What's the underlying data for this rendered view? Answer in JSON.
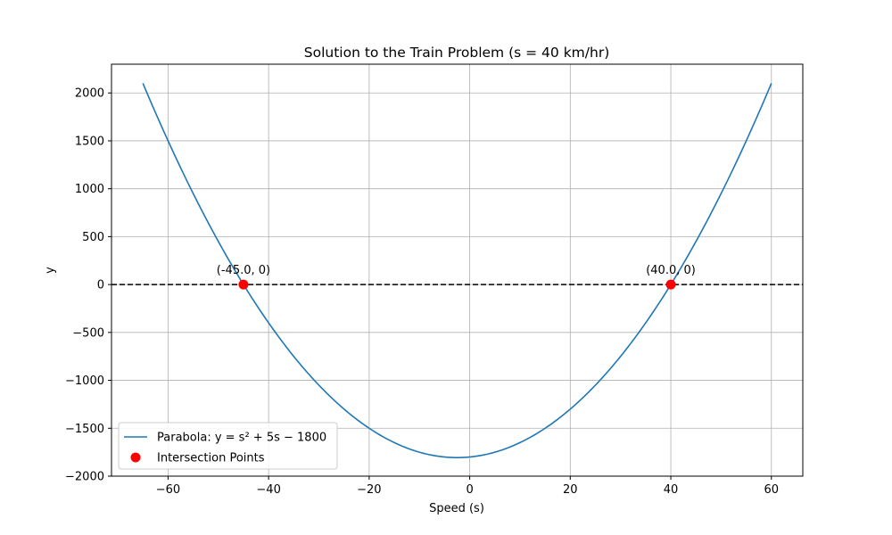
{
  "chart_data": {
    "type": "line",
    "title": "Solution to the Train Problem (s = 40 km/hr)",
    "xlabel": "Speed (s)",
    "ylabel": "y",
    "xlim": [
      -71.25,
      66.25
    ],
    "ylim": [
      -2000,
      2300
    ],
    "grid": true,
    "legend_position": "lower-left",
    "x_ticks": [
      -60,
      -40,
      -20,
      0,
      20,
      40,
      60
    ],
    "x_tick_labels": [
      "−60",
      "−40",
      "−20",
      "0",
      "20",
      "40",
      "60"
    ],
    "y_ticks": [
      -2000,
      -1500,
      -1000,
      -500,
      0,
      500,
      1000,
      1500,
      2000
    ],
    "y_tick_labels": [
      "−2000",
      "−1500",
      "−1000",
      "−500",
      "0",
      "500",
      "1000",
      "1500",
      "2000"
    ],
    "series": [
      {
        "name": "Parabola: y = s² + 5s − 1800",
        "type": "line",
        "color": "#1f77b4",
        "x": [
          -65,
          -60,
          -55,
          -50,
          -45,
          -40,
          -35,
          -30,
          -25,
          -20,
          -15,
          -10,
          -5,
          -2.5,
          0,
          5,
          10,
          15,
          20,
          25,
          30,
          35,
          40,
          45,
          50,
          55,
          60
        ],
        "y": [
          2100,
          1500,
          950,
          450,
          0,
          -400,
          -750,
          -1050,
          -1300,
          -1500,
          -1650,
          -1750,
          -1800,
          -1806.25,
          -1800,
          -1750,
          -1650,
          -1500,
          -1300,
          -1050,
          -750,
          -400,
          0,
          450,
          950,
          1500,
          2100
        ]
      },
      {
        "name": "Intersection Points",
        "type": "scatter",
        "color": "#ff0000",
        "x": [
          -45,
          40
        ],
        "y": [
          0,
          0
        ]
      }
    ],
    "reference_line": {
      "y": 0,
      "style": "dashed",
      "color": "#000000"
    },
    "annotations": [
      {
        "text": "(-45.0, 0)",
        "x": -45,
        "y": 0
      },
      {
        "text": "(40.0, 0)",
        "x": 40,
        "y": 0
      }
    ]
  }
}
